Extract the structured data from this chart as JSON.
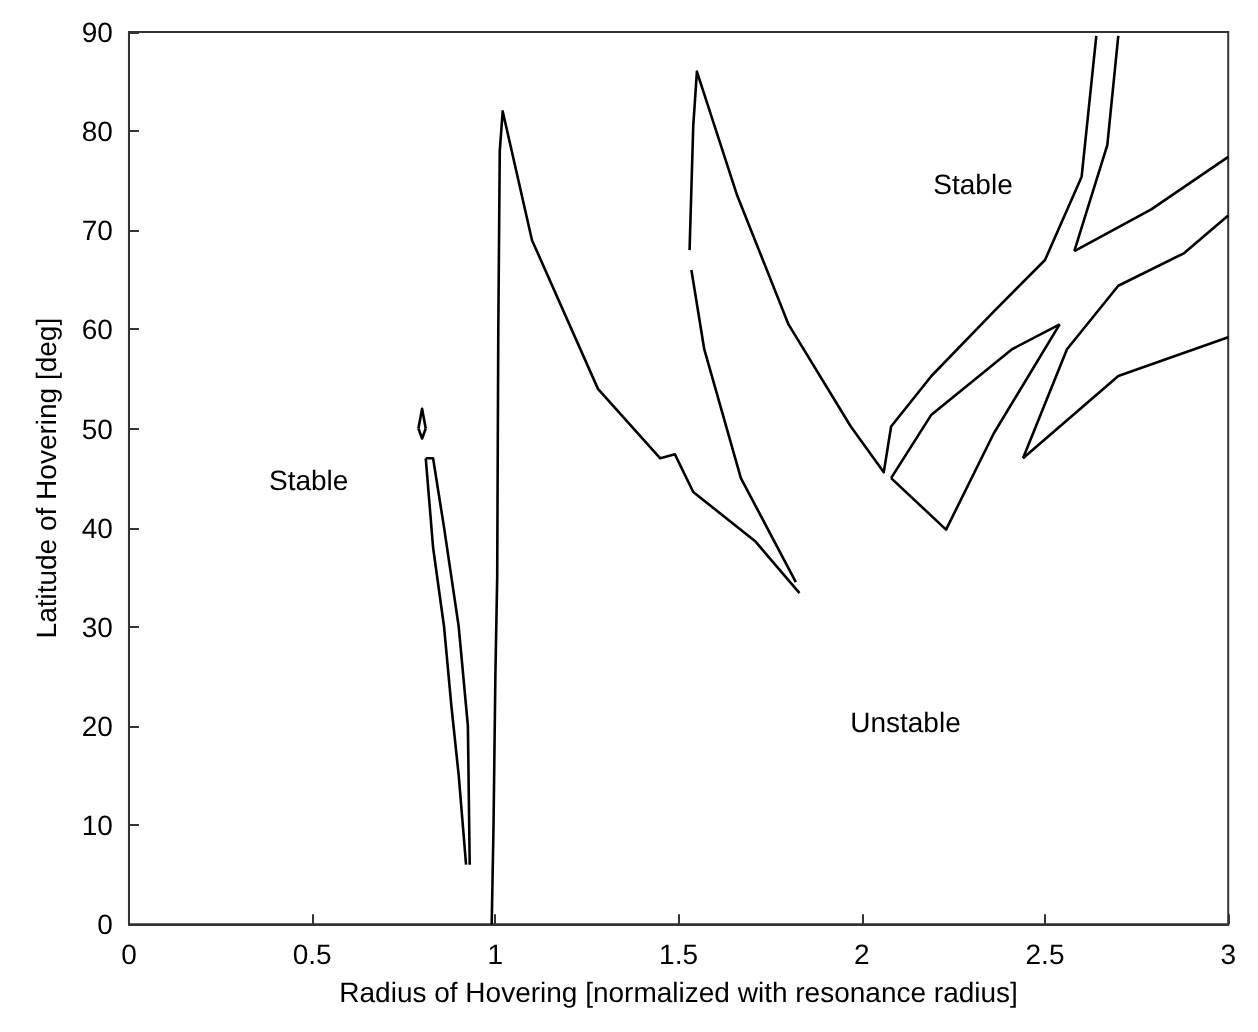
{
  "chart_data": {
    "type": "line",
    "xlabel": "Radius of Hovering [normalized with resonance radius]",
    "ylabel": "Latitude of Hovering [deg]",
    "xlim": [
      0,
      3
    ],
    "ylim": [
      0,
      90
    ],
    "xticks": [
      0,
      0.5,
      1,
      1.5,
      2,
      2.5,
      3
    ],
    "yticks": [
      0,
      10,
      20,
      30,
      40,
      50,
      60,
      70,
      80,
      90
    ],
    "grid": false,
    "marker": "none",
    "line_style": "solid",
    "series": [
      {
        "color": "#000000",
        "x": [
          0.81,
          0.83,
          0.86,
          0.88,
          0.9,
          0.92
        ],
        "values": [
          47,
          38,
          30,
          22,
          15,
          6
        ]
      },
      {
        "color": "#000000",
        "x": [
          0.81,
          0.83,
          0.86,
          0.9,
          0.925,
          0.93
        ],
        "values": [
          47,
          47,
          40,
          30,
          20,
          6
        ]
      },
      {
        "color": "#000000",
        "x": [
          0.79,
          0.8,
          0.81
        ],
        "values": [
          50,
          52,
          50
        ]
      },
      {
        "color": "#000000",
        "x": [
          0.79,
          0.8,
          0.81
        ],
        "values": [
          50,
          49,
          50
        ]
      },
      {
        "color": "#000000",
        "x": [
          0.99,
          0.995,
          1.0,
          1.005,
          1.008,
          1.012,
          1.02,
          1.1,
          1.28,
          1.45,
          1.49,
          1.54,
          1.71,
          1.83
        ],
        "values": [
          0,
          10,
          25,
          35,
          60,
          78,
          82,
          69,
          54,
          47,
          47.4,
          43.6,
          38.6,
          33.4
        ]
      },
      {
        "color": "#000000",
        "x": [
          1.535,
          1.57,
          1.67,
          1.82
        ],
        "values": [
          66,
          58,
          45,
          34.5
        ]
      },
      {
        "color": "#000000",
        "x": [
          1.53,
          1.54,
          1.55,
          1.66,
          1.8,
          1.97,
          2.06,
          2.08,
          2.19,
          2.36,
          2.5,
          2.6,
          2.64
        ],
        "values": [
          68,
          80.5,
          86,
          73.5,
          60.5,
          50.2,
          45.6,
          50.2,
          55.3,
          61.8,
          67,
          75.4,
          89.6
        ]
      },
      {
        "color": "#000000",
        "x": [
          2.58,
          2.67,
          2.7
        ],
        "values": [
          67.9,
          78.6,
          89.6
        ]
      },
      {
        "color": "#000000",
        "x": [
          2.58,
          2.79,
          3.0
        ],
        "values": [
          67.9,
          72.1,
          77.4
        ]
      },
      {
        "color": "#000000",
        "x": [
          2.08,
          2.23,
          2.36,
          2.54
        ],
        "values": [
          45,
          39.8,
          49.5,
          60.5
        ]
      },
      {
        "color": "#000000",
        "x": [
          2.08,
          2.19,
          2.41,
          2.54
        ],
        "values": [
          45,
          51.4,
          58,
          60.5
        ]
      },
      {
        "color": "#000000",
        "x": [
          2.44,
          2.7,
          3.0
        ],
        "values": [
          47,
          55.3,
          59.2
        ]
      },
      {
        "color": "#000000",
        "x": [
          2.44,
          2.56,
          2.7,
          2.88,
          3.0
        ],
        "values": [
          47,
          58,
          64.4,
          67.7,
          71.5
        ]
      }
    ],
    "annotations": [
      "Stable",
      "Stable",
      "Unstable"
    ]
  }
}
